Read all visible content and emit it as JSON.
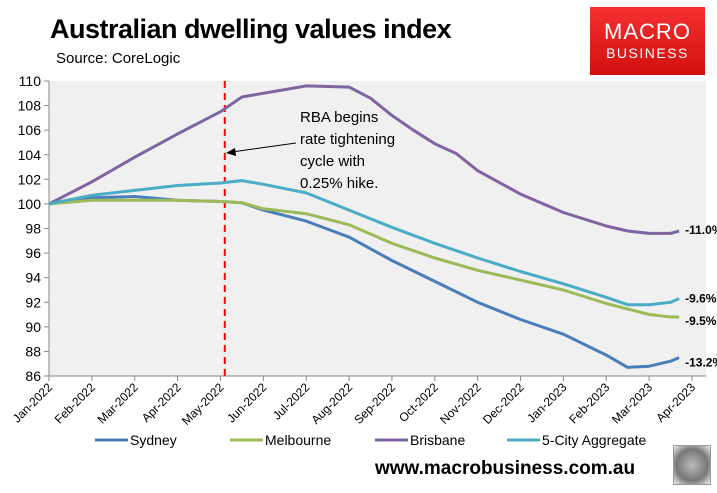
{
  "chart_data": {
    "type": "line",
    "title": "Australian dwelling values index",
    "subtitle": "Source: CoreLogic",
    "ylim": [
      86,
      110
    ],
    "yticks": [
      86,
      88,
      90,
      92,
      94,
      96,
      98,
      100,
      102,
      104,
      106,
      108,
      110
    ],
    "xticks": [
      "Jan-2022",
      "Feb-2022",
      "Mar-2022",
      "Apr-2022",
      "May-2022",
      "Jun-2022",
      "Jul-2022",
      "Aug-2022",
      "Sep-2022",
      "Oct-2022",
      "Nov-2022",
      "Dec-2022",
      "Jan-2023",
      "Feb-2023",
      "Mar-2023",
      "Apr-2023"
    ],
    "x_unit": "months since Jan-2022",
    "grid": false,
    "legend_placement": "bottom",
    "series": [
      {
        "name": "Sydney",
        "color": "#4a7ebb",
        "end_label": "-13.2%",
        "x": [
          0,
          1,
          2,
          3,
          4,
          4.5,
          5,
          6,
          7,
          8,
          9,
          10,
          11,
          12,
          13,
          13.5,
          14,
          14.5,
          14.7
        ],
        "values": [
          100,
          100.5,
          100.6,
          100.3,
          100.2,
          100.1,
          99.5,
          98.6,
          97.3,
          95.4,
          93.7,
          92.0,
          90.6,
          89.4,
          87.7,
          86.7,
          86.8,
          87.2,
          87.5
        ]
      },
      {
        "name": "Melbourne",
        "color": "#9bbb59",
        "end_label": "-9.5%",
        "x": [
          0,
          1,
          2,
          3,
          4,
          4.5,
          5,
          6,
          7,
          8,
          9,
          10,
          11,
          12,
          13,
          14,
          14.5,
          14.7
        ],
        "values": [
          100,
          100.3,
          100.3,
          100.3,
          100.2,
          100.1,
          99.6,
          99.2,
          98.3,
          96.8,
          95.6,
          94.6,
          93.8,
          93.0,
          91.9,
          91.0,
          90.8,
          90.8
        ]
      },
      {
        "name": "Brisbane",
        "color": "#8064a2",
        "end_label": "-11.0%",
        "x": [
          0,
          1,
          2,
          3,
          4,
          4.5,
          5,
          5.5,
          6,
          7,
          7.5,
          8,
          8.5,
          9,
          9.5,
          10,
          11,
          12,
          13,
          13.5,
          14,
          14.5,
          14.7
        ],
        "values": [
          100,
          101.8,
          103.8,
          105.7,
          107.5,
          108.7,
          109.0,
          109.3,
          109.6,
          109.5,
          108.6,
          107.2,
          106.0,
          104.9,
          104.1,
          102.7,
          100.8,
          99.3,
          98.2,
          97.8,
          97.6,
          97.6,
          97.8
        ]
      },
      {
        "name": "5-City Aggregate",
        "color": "#4bacc6",
        "end_label": "-9.6%",
        "x": [
          0,
          1,
          2,
          3,
          4,
          4.5,
          5,
          6,
          7,
          8,
          9,
          10,
          11,
          12,
          13,
          13.5,
          14,
          14.5,
          14.7
        ],
        "values": [
          100,
          100.7,
          101.1,
          101.5,
          101.7,
          101.9,
          101.6,
          100.9,
          99.5,
          98.1,
          96.8,
          95.6,
          94.5,
          93.5,
          92.4,
          91.8,
          91.8,
          92.0,
          92.3
        ]
      }
    ],
    "annotation": {
      "text": [
        "RBA begins",
        "rate tightening",
        "cycle with",
        "0.25% hike."
      ],
      "marker_x": 4.1,
      "marker_color": "#ff0000"
    }
  },
  "logo": {
    "line1": "MACRO",
    "line2": "BUSINESS"
  },
  "footer_url": "www.macrobusiness.com.au"
}
